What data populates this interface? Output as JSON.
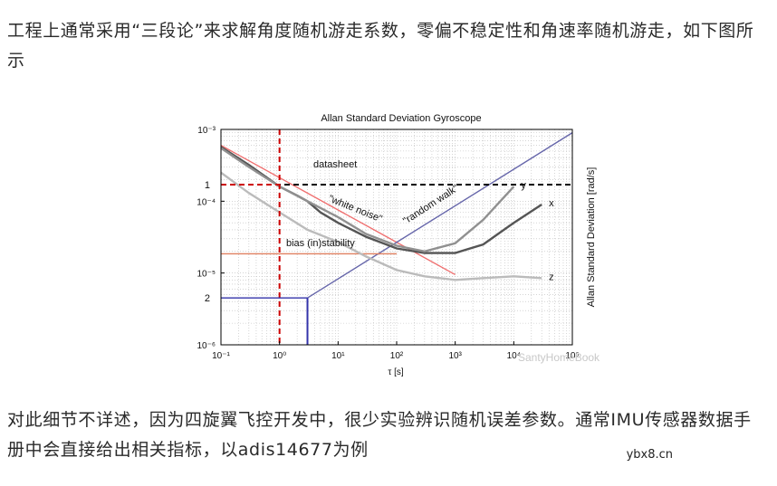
{
  "paragraphs": [
    "工程上通常采用“三段论”来求解角度随机游走系数，零偏不稳定性和角速率随机游走，如下图所示",
    "对此细节不详述，因为四旋翼飞控开发中，很少实验辨识随机误差参数。通常IMU传感器数据手册中会直接给出相关指标，以adis14677为例"
  ],
  "site_mark": "ybx8.cn",
  "chart_data": {
    "type": "line",
    "title": "Allan Standard Deviation Gyroscope",
    "xlabel": "τ [s]",
    "ylabel": "Allan Standard Deviation [rad/s]",
    "x_scale": "log",
    "y_scale": "log",
    "xlim": [
      0.1,
      100000
    ],
    "ylim": [
      1e-06,
      0.001
    ],
    "x_ticks": [
      "10⁻¹",
      "10⁰",
      "10¹",
      "10²",
      "10³",
      "10⁴",
      "10⁵"
    ],
    "y_ticks": [
      "10⁻³",
      "10⁻⁴",
      "10⁻⁵",
      "10⁻⁶"
    ],
    "grid": true,
    "series": [
      {
        "name": "x",
        "color": "#555555",
        "x": [
          0.1,
          0.3,
          1,
          2,
          3,
          5,
          10,
          30,
          100,
          300,
          1000,
          3000,
          10000,
          30000
        ],
        "y": [
          0.00057,
          0.00032,
          0.00016,
          0.00012,
          0.0001,
          7e-05,
          5e-05,
          3.2e-05,
          2.2e-05,
          1.9e-05,
          1.9e-05,
          2.5e-05,
          5e-05,
          9e-05
        ]
      },
      {
        "name": "y",
        "color": "#909090",
        "x": [
          0.1,
          0.3,
          1,
          3,
          10,
          30,
          100,
          300,
          1000,
          3000,
          10000
        ],
        "y": [
          0.00055,
          0.0003,
          0.00016,
          0.0001,
          6e-05,
          3.5e-05,
          2.4e-05,
          2e-05,
          2.6e-05,
          5.5e-05,
          0.00016
        ]
      },
      {
        "name": "z",
        "color": "#bbbbbb",
        "x": [
          0.1,
          0.3,
          1,
          3,
          10,
          30,
          100,
          300,
          1000,
          3000,
          10000,
          30000
        ],
        "y": [
          0.00025,
          0.00013,
          7e-05,
          4e-05,
          2.7e-05,
          1.7e-05,
          1.1e-05,
          9e-06,
          8e-06,
          8.5e-06,
          9e-06,
          8.5e-06
        ]
      }
    ],
    "reference_lines": [
      {
        "label": "\"white noise\"",
        "color": "#f07070",
        "x": [
          0.1,
          1000
        ],
        "y": [
          0.0006,
          9.5e-06
        ]
      },
      {
        "label": "\"random walk\"",
        "color": "#6666aa",
        "x": [
          3,
          100000
        ],
        "y": [
          4.5e-06,
          0.0009
        ]
      },
      {
        "label": "datasheet",
        "color": "#000000",
        "dash": true,
        "x": [
          0.1,
          100000
        ],
        "y": [
          0.00017,
          0.00017
        ]
      },
      {
        "label": "bias (in)stability",
        "color": "#e08060",
        "x": [
          0.1,
          100
        ],
        "y": [
          1.85e-05,
          1.85e-05
        ]
      }
    ],
    "markers": [
      {
        "label": "1",
        "color": "#cc0000",
        "at_tau": 1,
        "value": 0.00017
      },
      {
        "label": "2",
        "color": "#3333aa",
        "at_tau": 3,
        "value": 4.5e-06
      }
    ],
    "watermark": "SantyHomeBook"
  }
}
